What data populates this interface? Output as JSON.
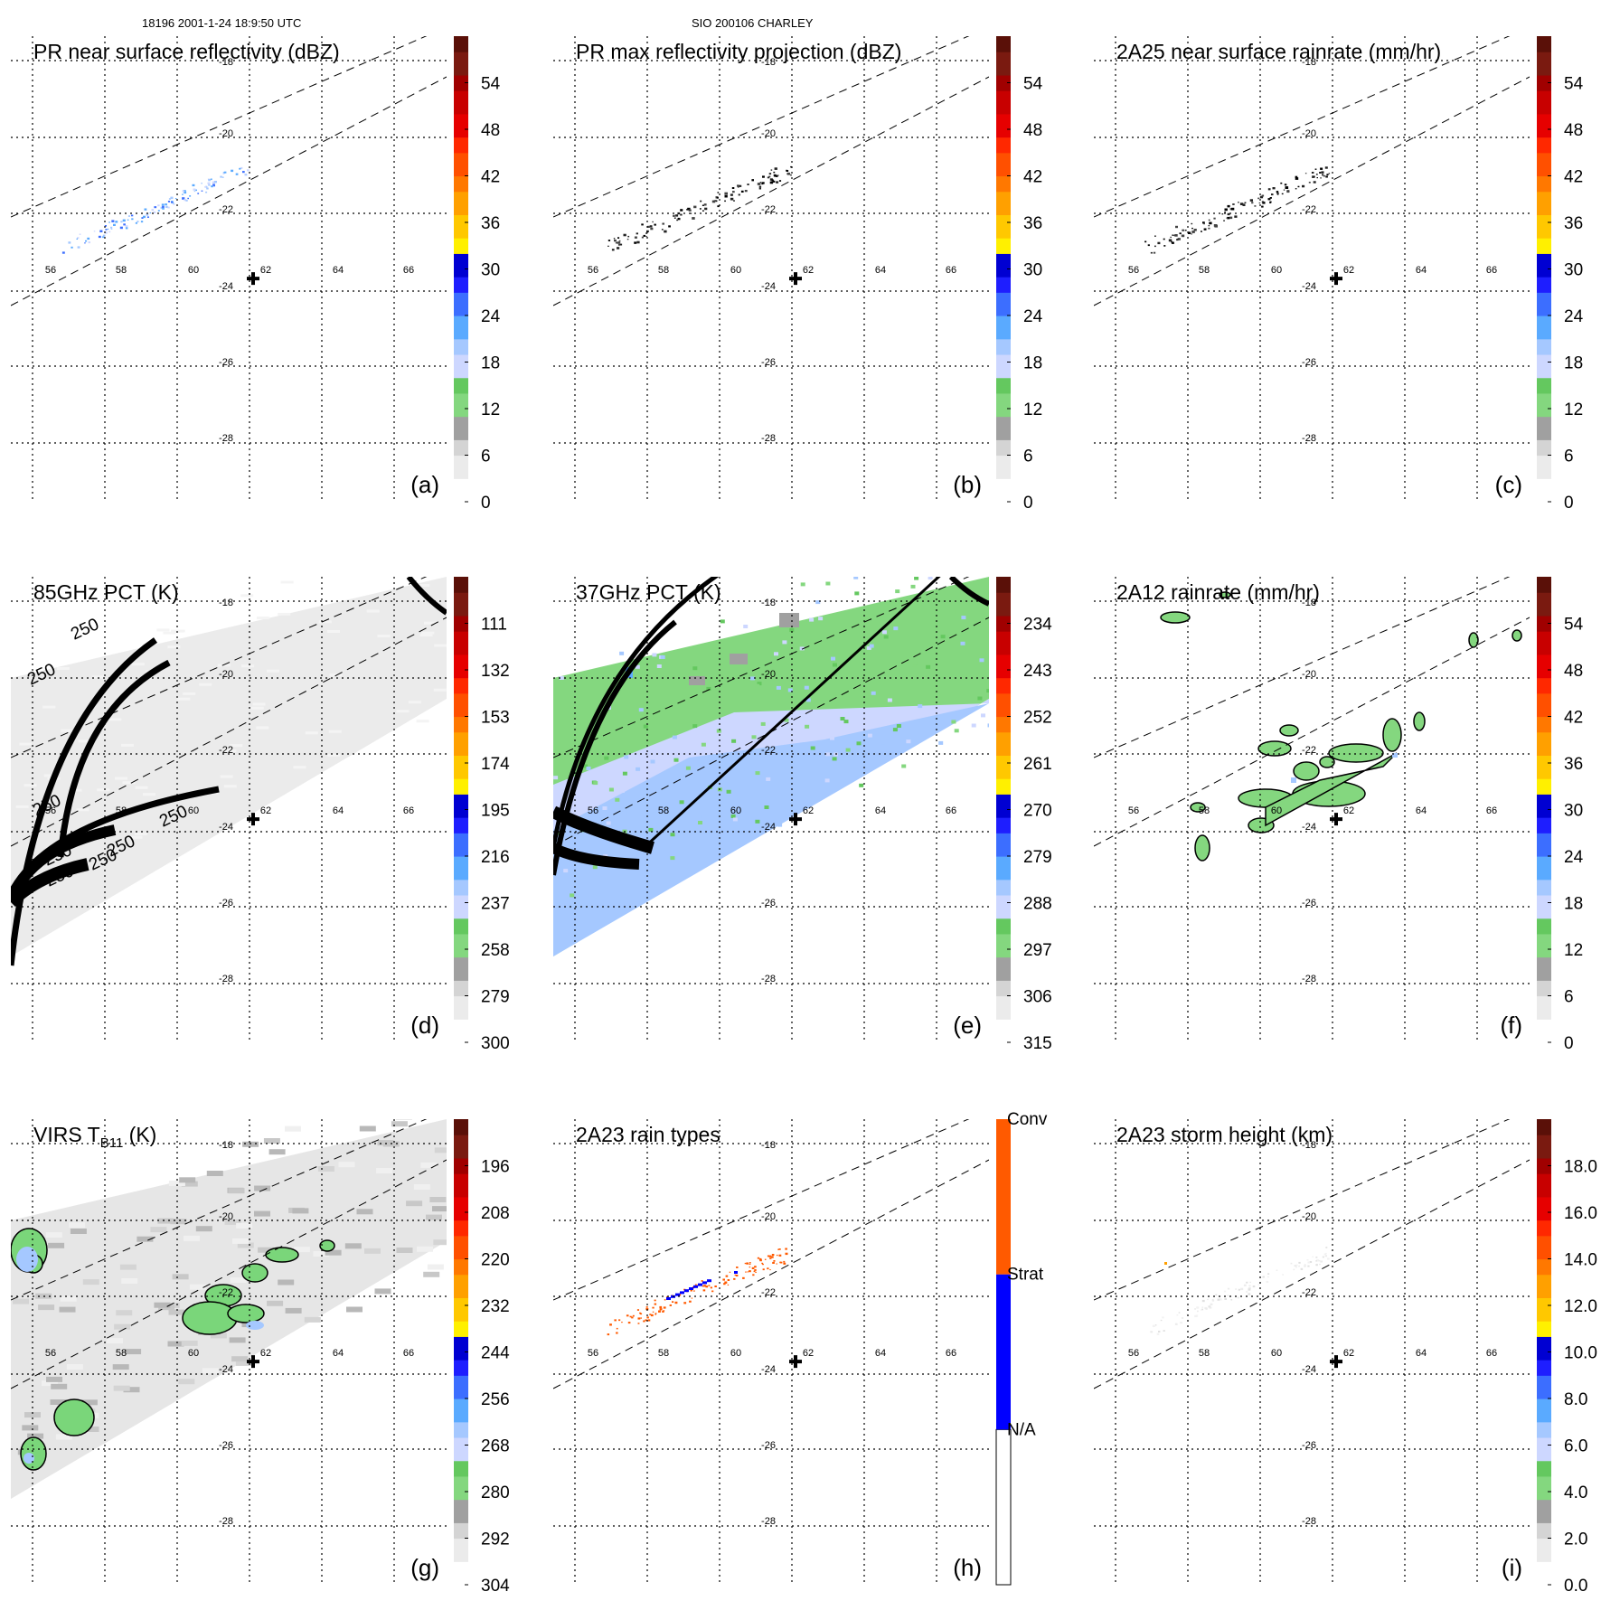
{
  "header": {
    "left": "18196 2001-1-24 18:9:50 UTC",
    "center": "SIO 200106 CHARLEY"
  },
  "colors": {
    "scale": [
      "#ffffff",
      "#ebebeb",
      "#d4d4d4",
      "#a0a0a0",
      "#84d77f",
      "#64c85f",
      "#cdd7ff",
      "#a5c8ff",
      "#5aaaff",
      "#3c6eff",
      "#1e1eff",
      "#0000d2",
      "#fff000",
      "#ffc800",
      "#ffa000",
      "#ff7800",
      "#ff5000",
      "#ff2800",
      "#e60000",
      "#c80000",
      "#a00000",
      "#7a1a10",
      "#5a1008"
    ],
    "rain_types": {
      "na": "#ffffff",
      "strat": "#0000ff",
      "conv": "#ff5a00"
    },
    "grey_bg": "#e6e6e6",
    "contour_green": "#7ad67a"
  },
  "chart_data": [
    {
      "id": "a",
      "type": "heatmap",
      "title": "PR near surface reflectivity (dBZ)",
      "panel_label": "(a)",
      "colorbar_labels": [
        "0",
        "6",
        "12",
        "18",
        "24",
        "30",
        "36",
        "42",
        "48",
        "54"
      ],
      "colorbar_range": [
        0,
        60
      ],
      "lon_ticks": [
        "56",
        "58",
        "60",
        "62",
        "64",
        "66"
      ],
      "lat_ticks": [
        "-18",
        "-20",
        "-22",
        "-24",
        "-26",
        "-28"
      ],
      "storm_center": [
        61.5,
        -23.7
      ],
      "field": "pr_sparse"
    },
    {
      "id": "b",
      "type": "heatmap",
      "title": "PR max reflectivity projection (dBZ)",
      "panel_label": "(b)",
      "colorbar_labels": [
        "0",
        "6",
        "12",
        "18",
        "24",
        "30",
        "36",
        "42",
        "48",
        "54"
      ],
      "colorbar_range": [
        0,
        60
      ],
      "lon_ticks": [
        "56",
        "58",
        "60",
        "62",
        "64",
        "66"
      ],
      "lat_ticks": [
        "-18",
        "-20",
        "-22",
        "-24",
        "-26",
        "-28"
      ],
      "storm_center": [
        61.5,
        -23.7
      ],
      "field": "pr_dark"
    },
    {
      "id": "c",
      "type": "heatmap",
      "title": "2A25 near surface rainrate (mm/hr)",
      "panel_label": "(c)",
      "colorbar_labels": [
        "0",
        "6",
        "12",
        "18",
        "24",
        "30",
        "36",
        "42",
        "48",
        "54"
      ],
      "colorbar_range": [
        0,
        60
      ],
      "lon_ticks": [
        "56",
        "58",
        "60",
        "62",
        "64",
        "66"
      ],
      "lat_ticks": [
        "-18",
        "-20",
        "-22",
        "-24",
        "-26",
        "-28"
      ],
      "storm_center": [
        61.5,
        -23.7
      ],
      "field": "pr_dark"
    },
    {
      "id": "d",
      "type": "heatmap",
      "title": "85GHz PCT (K)",
      "panel_label": "(d)",
      "colorbar_labels": [
        "300",
        "279",
        "258",
        "237",
        "216",
        "195",
        "174",
        "153",
        "132",
        "111"
      ],
      "colorbar_range": [
        300,
        90
      ],
      "lon_ticks": [
        "56",
        "58",
        "60",
        "62",
        "64",
        "66"
      ],
      "lat_ticks": [
        "-18",
        "-20",
        "-22",
        "-24",
        "-26",
        "-28"
      ],
      "storm_center": [
        61.5,
        -23.7
      ],
      "contour_labels": [
        "250",
        "250",
        "250",
        "250",
        "250",
        "250",
        "250",
        "250"
      ],
      "field": "swath_light"
    },
    {
      "id": "e",
      "type": "heatmap",
      "title": "37GHz PCT (K)",
      "panel_label": "(e)",
      "colorbar_labels": [
        "315",
        "306",
        "297",
        "288",
        "279",
        "270",
        "261",
        "252",
        "243",
        "234"
      ],
      "colorbar_range": [
        315,
        225
      ],
      "lon_ticks": [
        "56",
        "58",
        "60",
        "62",
        "64",
        "66"
      ],
      "lat_ticks": [
        "-18",
        "-20",
        "-22",
        "-24",
        "-26",
        "-28"
      ],
      "storm_center": [
        61.5,
        -23.7
      ],
      "field": "swath_green_blue"
    },
    {
      "id": "f",
      "type": "heatmap",
      "title": "2A12 rainrate (mm/hr)",
      "panel_label": "(f)",
      "colorbar_labels": [
        "0",
        "6",
        "12",
        "18",
        "24",
        "30",
        "36",
        "42",
        "48",
        "54"
      ],
      "colorbar_range": [
        0,
        60
      ],
      "lon_ticks": [
        "56",
        "58",
        "60",
        "62",
        "64",
        "66"
      ],
      "lat_ticks": [
        "-18",
        "-20",
        "-22",
        "-24",
        "-26",
        "-28"
      ],
      "storm_center": [
        61.5,
        -23.7
      ],
      "field": "green_blobs"
    },
    {
      "id": "g",
      "type": "heatmap",
      "title": "VIRS T",
      "title_sub": "B11",
      "title_tail": " (K)",
      "panel_label": "(g)",
      "colorbar_labels": [
        "304",
        "292",
        "280",
        "268",
        "256",
        "244",
        "232",
        "220",
        "208",
        "196"
      ],
      "colorbar_range": [
        304,
        184
      ],
      "lon_ticks": [
        "56",
        "58",
        "60",
        "62",
        "64",
        "66"
      ],
      "lat_ticks": [
        "-18",
        "-20",
        "-22",
        "-24",
        "-26",
        "-28"
      ],
      "storm_center": [
        61.5,
        -23.7
      ],
      "field": "virs"
    },
    {
      "id": "h",
      "type": "heatmap",
      "title": "2A23 rain types",
      "panel_label": "(h)",
      "colorbar_labels": [
        "N/A",
        "Strat",
        "Conv"
      ],
      "lon_ticks": [
        "56",
        "58",
        "60",
        "62",
        "64",
        "66"
      ],
      "lat_ticks": [
        "-18",
        "-20",
        "-22",
        "-24",
        "-26",
        "-28"
      ],
      "storm_center": [
        61.5,
        -23.7
      ],
      "field": "rain_types"
    },
    {
      "id": "i",
      "type": "heatmap",
      "title": "2A23 storm height (km)",
      "panel_label": "(i)",
      "colorbar_labels": [
        "0.0",
        "2.0",
        "4.0",
        "6.0",
        "8.0",
        "10.0",
        "12.0",
        "14.0",
        "16.0",
        "18.0"
      ],
      "colorbar_range": [
        0,
        20
      ],
      "lon_ticks": [
        "56",
        "58",
        "60",
        "62",
        "64",
        "66"
      ],
      "lat_ticks": [
        "-18",
        "-20",
        "-22",
        "-24",
        "-26",
        "-28"
      ],
      "storm_center": [
        61.5,
        -23.7
      ],
      "field": "faint"
    }
  ]
}
